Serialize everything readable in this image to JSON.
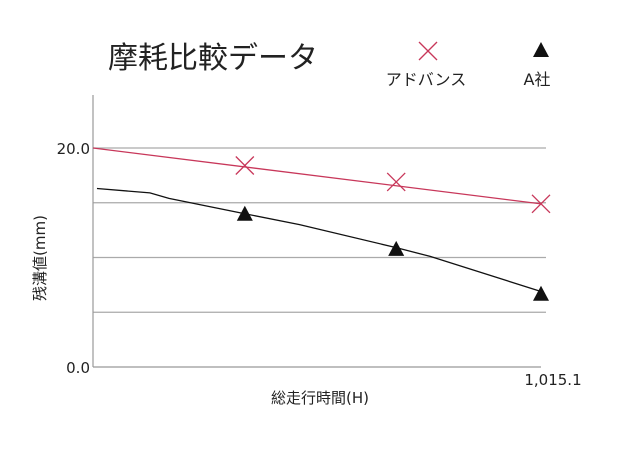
{
  "chart_data": {
    "type": "line",
    "title": "摩耗比較データ",
    "xlabel": "総走行時間(H)",
    "ylabel": "残溝値(mm)",
    "ylim": [
      0,
      20
    ],
    "xlim": [
      0,
      1015.1
    ],
    "y_tick_labels": [
      "0.0",
      "20.0"
    ],
    "x_tick_labels": [
      "1,015.1"
    ],
    "grid": "horizontal",
    "legend_placement": "top-right",
    "series": [
      {
        "name": "アドバンス",
        "marker": "cross",
        "color": "#c8375a",
        "points": [
          [
            344,
            18.4
          ],
          [
            687,
            16.9
          ],
          [
            1015.1,
            14.9
          ]
        ],
        "trend": [
          [
            0,
            20.0
          ],
          [
            1015.1,
            14.9
          ]
        ]
      },
      {
        "name": "A社",
        "marker": "triangle",
        "color": "#111111",
        "points": [
          [
            344,
            13.9
          ],
          [
            687,
            10.7
          ],
          [
            1015.1,
            6.6
          ]
        ],
        "trend": [
          [
            9,
            16.3
          ],
          [
            129,
            15.9
          ],
          [
            172,
            15.4
          ],
          [
            344,
            14.0
          ],
          [
            468,
            13.0
          ],
          [
            687,
            10.9
          ],
          [
            764,
            10.1
          ],
          [
            1015.1,
            6.9
          ]
        ]
      }
    ]
  }
}
